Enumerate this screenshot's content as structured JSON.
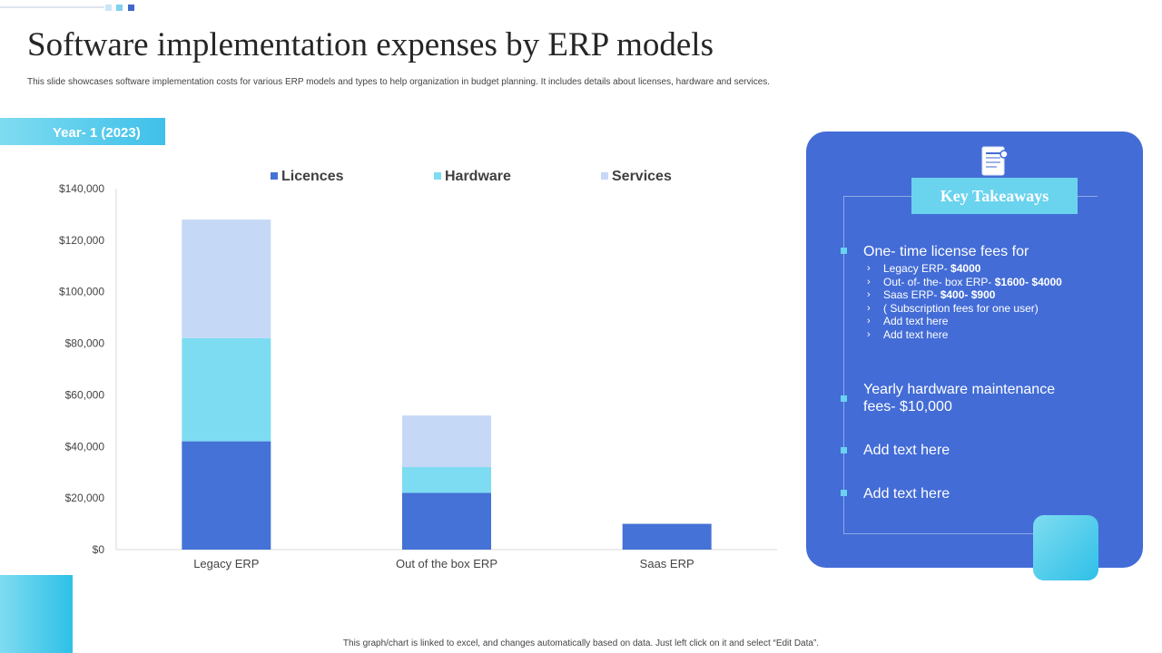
{
  "page": {
    "title": "Software implementation expenses by ERP models",
    "subtitle": "This slide showcases software implementation costs for various ERP models and types to help organization in budget planning. It includes details about licenses, hardware and services.",
    "year_label": "Year- 1 (2023)",
    "footer_note": "This graph/chart is linked to excel, and changes automatically based on data. Just left click on it and select “Edit Data”."
  },
  "colors": {
    "licences": "#4472d6",
    "hardware": "#7ddcf2",
    "services": "#c5d8f6",
    "panel": "#436cd6",
    "accent": "#6ad3ee"
  },
  "chart_data": {
    "type": "bar",
    "stacked": true,
    "categories": [
      "Legacy ERP",
      "Out of the box ERP",
      "Saas ERP"
    ],
    "series": [
      {
        "name": "Licences",
        "values": [
          42000,
          22000,
          10000
        ]
      },
      {
        "name": "Hardware",
        "values": [
          40000,
          10000,
          0
        ]
      },
      {
        "name": "Services",
        "values": [
          46000,
          20000,
          0
        ]
      }
    ],
    "ylim": [
      0,
      140000
    ],
    "yticks": [
      0,
      20000,
      40000,
      60000,
      80000,
      100000,
      120000,
      140000
    ],
    "ytick_labels": [
      "$0",
      "$20,000",
      "$40,000",
      "$60,000",
      "$80,000",
      "$100,000",
      "$120,000",
      "$140,000"
    ],
    "legend_position": "top",
    "grid": false,
    "xlabel": "",
    "ylabel": ""
  },
  "key_takeaways": {
    "heading": "Key Takeaways",
    "point1": {
      "title": "One- time license fees for",
      "items": [
        {
          "label": "Legacy ERP- ",
          "value": "$4000"
        },
        {
          "label": "Out- of- the- box ERP- ",
          "value": "$1600- $4000"
        },
        {
          "label": "Saas ERP- ",
          "value": "$400- $900"
        },
        {
          "label": "( Subscription fees for one user)",
          "value": ""
        },
        {
          "label": "Add text here",
          "value": ""
        },
        {
          "label": "Add text here",
          "value": ""
        }
      ]
    },
    "point2": "Yearly hardware maintenance fees- $10,000",
    "point3": "Add text here",
    "point4": "Add text here"
  }
}
